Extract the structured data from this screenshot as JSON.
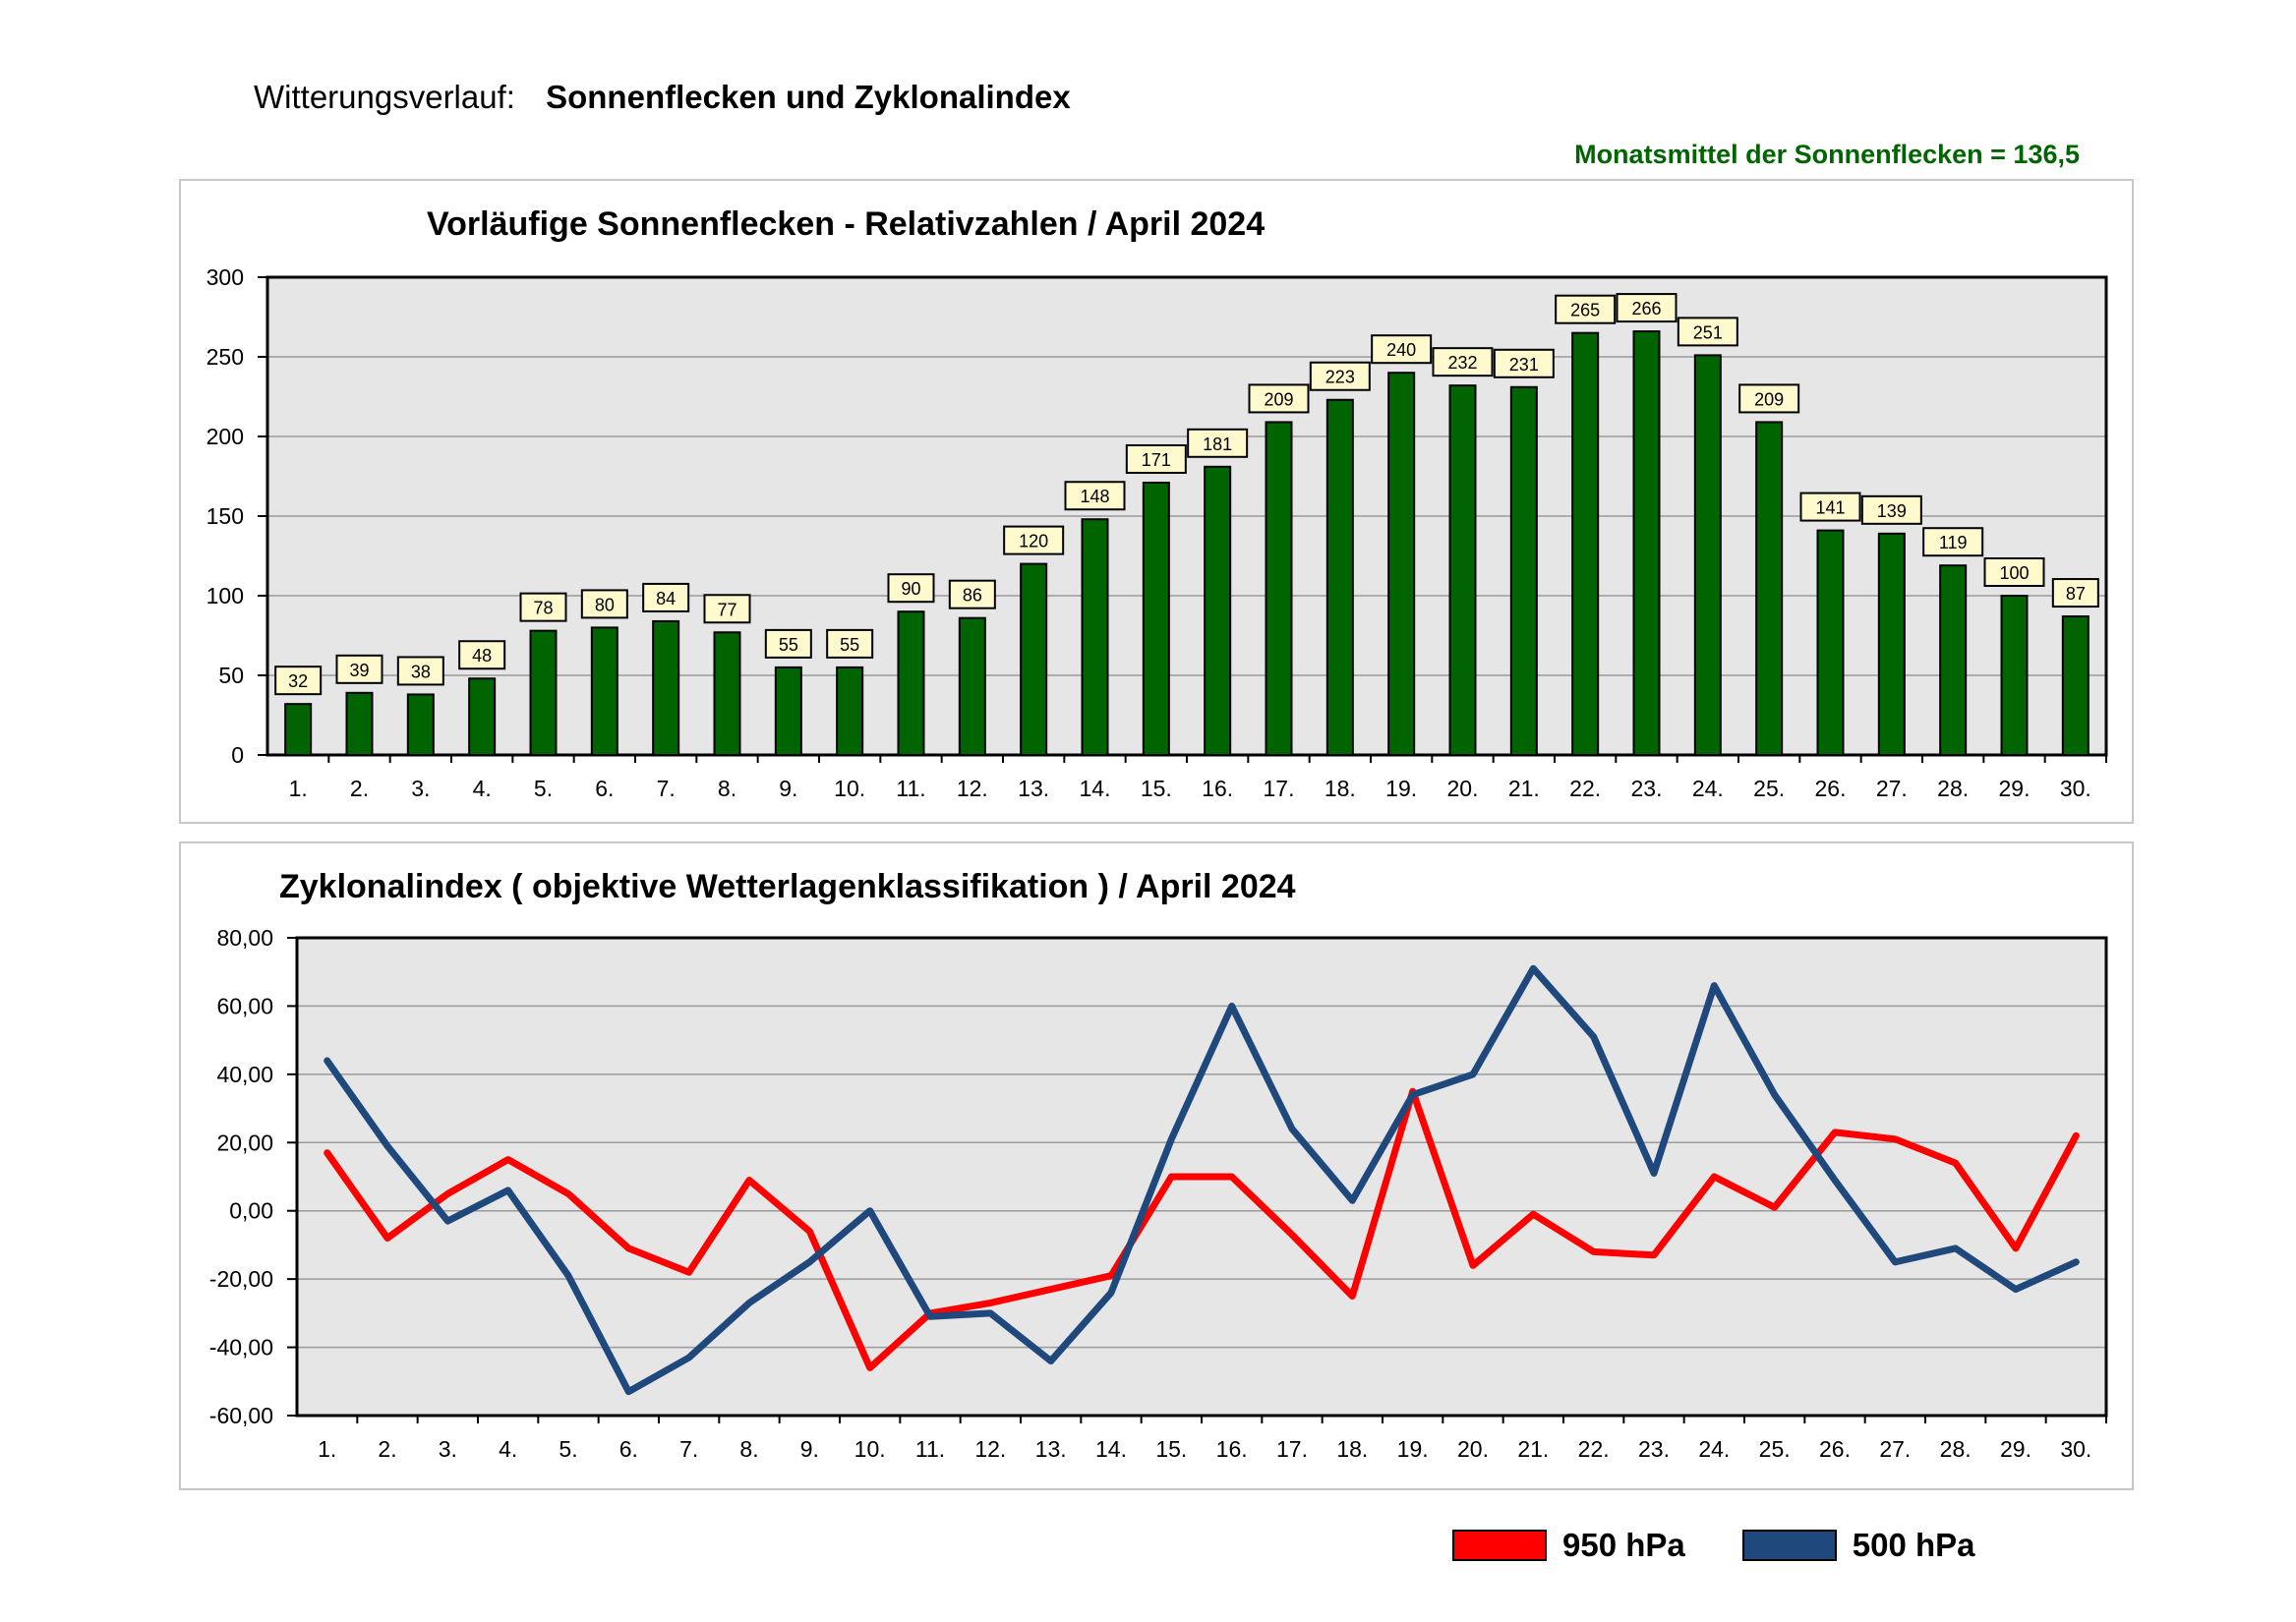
{
  "header": {
    "prefix": "Witterungsverlauf:",
    "title": "Sonnenflecken und Zyklonalindex",
    "monthly_mean": "Monatsmittel der Sonnenflecken = 136,5"
  },
  "colors": {
    "bar": "#006400",
    "label_box": "#fffacd",
    "plot_bg": "#e6e6e6",
    "series_950": "#ff0000",
    "series_500": "#1f497d"
  },
  "chart_data": [
    {
      "type": "bar",
      "title": "Vorläufige Sonnenflecken - Relativzahlen  /   April 2024",
      "categories": [
        "1.",
        "2.",
        "3.",
        "4.",
        "5.",
        "6.",
        "7.",
        "8.",
        "9.",
        "10.",
        "11.",
        "12.",
        "13.",
        "14.",
        "15.",
        "16.",
        "17.",
        "18.",
        "19.",
        "20.",
        "21.",
        "22.",
        "23.",
        "24.",
        "25.",
        "26.",
        "27.",
        "28.",
        "29.",
        "30."
      ],
      "values": [
        32,
        39,
        38,
        48,
        78,
        80,
        84,
        77,
        55,
        55,
        90,
        86,
        120,
        148,
        171,
        181,
        209,
        223,
        240,
        232,
        231,
        265,
        266,
        251,
        209,
        141,
        139,
        119,
        100,
        87
      ],
      "ylim": [
        0,
        300
      ],
      "yticks": [
        "0",
        "50",
        "100",
        "150",
        "200",
        "250",
        "300"
      ],
      "grid": true,
      "data_labels": true
    },
    {
      "type": "line",
      "title": "Zyklonalindex  ( objektive Wetterlagenklassifikation )  /  April 2024",
      "categories": [
        "1.",
        "2.",
        "3.",
        "4.",
        "5.",
        "6.",
        "7.",
        "8.",
        "9.",
        "10.",
        "11.",
        "12.",
        "13.",
        "14.",
        "15.",
        "16.",
        "17.",
        "18.",
        "19.",
        "20.",
        "21.",
        "22.",
        "23.",
        "24.",
        "25.",
        "26.",
        "27.",
        "28.",
        "29.",
        "30."
      ],
      "series": [
        {
          "name": "950 hPa",
          "values": [
            17,
            -8,
            5,
            15,
            5,
            -11,
            -18,
            9,
            -6,
            -46,
            -30,
            -27,
            -23,
            -19,
            10,
            10,
            -7,
            -25,
            35,
            -16,
            -1,
            -12,
            -13,
            10,
            1,
            23,
            21,
            14,
            -11,
            22
          ]
        },
        {
          "name": "500 hPa",
          "values": [
            44,
            19,
            -3,
            6,
            -19,
            -53,
            -43,
            -27,
            -15,
            0,
            -31,
            -30,
            -44,
            -24,
            21,
            60,
            24,
            3,
            34,
            40,
            71,
            51,
            11,
            66,
            34,
            9,
            -15,
            -11,
            -23,
            -15
          ]
        }
      ],
      "ylim": [
        -60,
        80
      ],
      "yticks": [
        "-60,00",
        "-40,00",
        "-20,00",
        "0,00",
        "20,00",
        "40,00",
        "60,00",
        "80,00"
      ],
      "grid": true,
      "legend_position": "bottom-right"
    }
  ]
}
